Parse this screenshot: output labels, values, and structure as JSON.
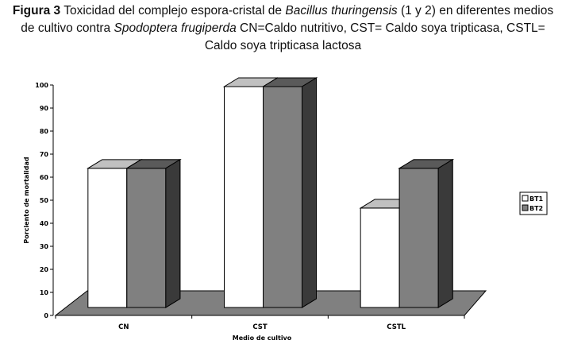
{
  "caption": {
    "label": "Figura 3",
    "t1": " Toxicidad del complejo espora-cristal de ",
    "t2": "Bacillus thuringensis",
    "t3": " (1 y 2)  en diferentes medios",
    "t4": "de cultivo contra ",
    "t5": "Spodoptera frugiperda",
    "t6": " CN=Caldo nutritivo, CST= Caldo soya tripticasa, CSTL=",
    "t7": "Caldo soya tripticasa lactosa"
  },
  "chart_data": {
    "type": "bar",
    "title": "",
    "xlabel": "Medio de cultivo",
    "ylabel": "Porciento de mortalidad",
    "categories": [
      "CN",
      "CST",
      "CSTL"
    ],
    "series": [
      {
        "name": "BT1",
        "values": [
          63,
          100,
          45
        ],
        "color": "#ffffff"
      },
      {
        "name": "BT2",
        "values": [
          63,
          100,
          63
        ],
        "color": "#808080"
      }
    ],
    "ylim": [
      0,
      100
    ],
    "yticks": [
      0,
      10,
      20,
      30,
      40,
      50,
      60,
      70,
      80,
      90,
      100
    ],
    "legend": "right",
    "grid": false
  }
}
